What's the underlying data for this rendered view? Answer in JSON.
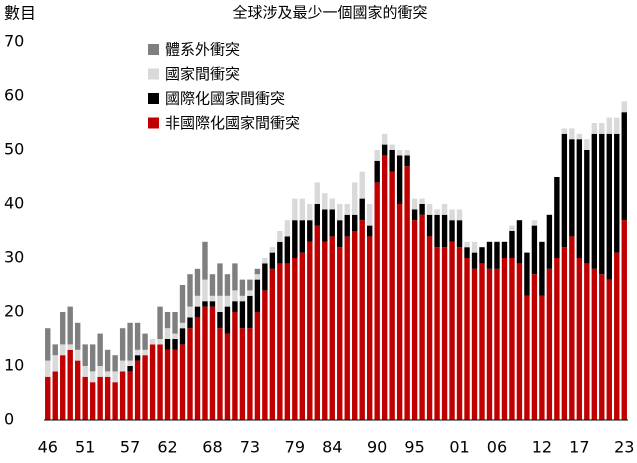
{
  "chart_data": {
    "type": "stacked-bar",
    "title": "全球涉及最少一個國家的衝突",
    "y_label": "數目",
    "categories": [
      "46",
      null,
      null,
      null,
      null,
      "51",
      null,
      null,
      null,
      null,
      null,
      "57",
      null,
      null,
      null,
      null,
      "62",
      null,
      null,
      null,
      null,
      null,
      "68",
      null,
      null,
      null,
      null,
      "73",
      null,
      null,
      null,
      null,
      null,
      "79",
      null,
      null,
      null,
      null,
      "84",
      null,
      null,
      null,
      null,
      null,
      "90",
      null,
      null,
      null,
      null,
      "95",
      null,
      null,
      null,
      null,
      null,
      "01",
      null,
      null,
      null,
      null,
      "06",
      null,
      null,
      null,
      null,
      null,
      "12",
      null,
      null,
      null,
      null,
      "17",
      null,
      null,
      null,
      null,
      null,
      "23"
    ],
    "series": [
      {
        "name": "非國際化國家間衝突",
        "color": "#c00000",
        "values": [
          8,
          9,
          12,
          13,
          11,
          8,
          7,
          8,
          8,
          7,
          9,
          9,
          11,
          12,
          14,
          14,
          13,
          13,
          14,
          17,
          19,
          21,
          21,
          17,
          16,
          20,
          17,
          17,
          20,
          24,
          28,
          29,
          29,
          30,
          31,
          33,
          36,
          33,
          34,
          32,
          34,
          35,
          37,
          34,
          44,
          49,
          46,
          40,
          47,
          37,
          38,
          34,
          32,
          32,
          33,
          32,
          30,
          28,
          29,
          28,
          28,
          30,
          30,
          29,
          23,
          27,
          23,
          28,
          30,
          32,
          34,
          30,
          29,
          28,
          27,
          26,
          31,
          37
        ]
      },
      {
        "name": "國際化國家間衝突",
        "color": "#000000",
        "values": [
          0,
          0,
          0,
          0,
          0,
          0,
          0,
          0,
          0,
          0,
          0,
          1,
          1,
          0,
          0,
          0,
          2,
          2,
          3,
          2,
          2,
          1,
          1,
          3,
          5,
          2,
          5,
          6,
          6,
          5,
          3,
          4,
          5,
          7,
          6,
          4,
          4,
          6,
          5,
          5,
          4,
          3,
          4,
          2,
          4,
          2,
          4,
          9,
          2,
          2,
          2,
          4,
          6,
          6,
          4,
          5,
          2,
          3,
          3,
          5,
          5,
          3,
          5,
          8,
          8,
          9,
          10,
          10,
          15,
          21,
          18,
          22,
          21,
          25,
          26,
          27,
          22,
          20
        ]
      },
      {
        "name": "國家間衝突",
        "color": "#d9d9d9",
        "values": [
          3,
          3,
          2,
          1,
          2,
          2,
          2,
          2,
          1,
          2,
          2,
          1,
          1,
          1,
          1,
          1,
          2,
          1,
          1,
          2,
          2,
          4,
          1,
          3,
          2,
          2,
          1,
          1,
          1,
          1,
          1,
          2,
          3,
          4,
          4,
          3,
          4,
          3,
          2,
          3,
          2,
          6,
          5,
          4,
          2,
          2,
          1,
          1,
          1,
          2,
          1,
          2,
          1,
          2,
          2,
          2,
          1,
          2,
          0,
          0,
          0,
          0,
          1,
          0,
          0,
          1,
          0,
          0,
          0,
          1,
          2,
          1,
          2,
          2,
          2,
          3,
          3,
          2
        ]
      },
      {
        "name": "體系外衝突",
        "color": "#7f7f7f",
        "values": [
          6,
          2,
          6,
          7,
          5,
          4,
          5,
          6,
          4,
          3,
          6,
          7,
          5,
          3,
          0,
          6,
          3,
          4,
          7,
          6,
          5,
          7,
          4,
          6,
          4,
          5,
          3,
          2,
          1,
          0,
          0,
          0,
          0,
          0,
          0,
          0,
          0,
          0,
          0,
          0,
          0,
          0,
          0,
          0,
          0,
          0,
          0,
          0,
          0,
          0,
          0,
          0,
          0,
          0,
          0,
          0,
          0,
          0,
          0,
          0,
          0,
          0,
          0,
          0,
          0,
          0,
          0,
          0,
          0,
          0,
          0,
          0,
          0,
          0,
          0,
          0,
          0,
          0
        ]
      }
    ],
    "ylim": [
      0,
      70
    ],
    "yticks": [
      0,
      10,
      20,
      30,
      40,
      50,
      60,
      70
    ],
    "grid": false
  }
}
